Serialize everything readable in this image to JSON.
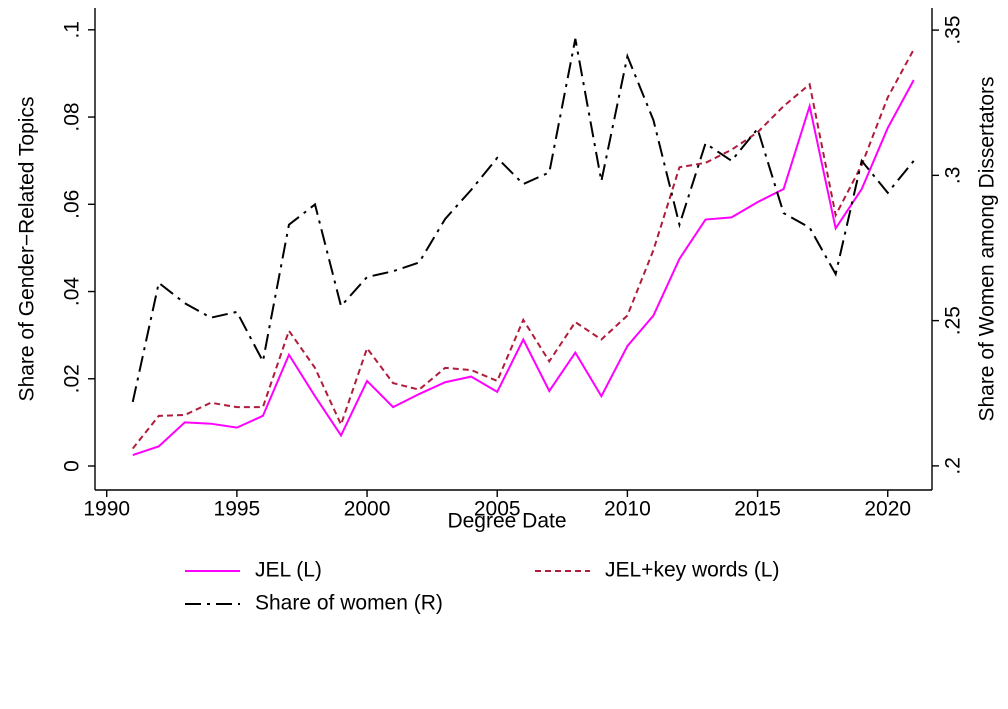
{
  "chart_data": {
    "type": "line",
    "x_label": "Degree Date",
    "y_label": "Share of Gender−Related Topics",
    "y2_label": "Share of Women among Dissertators",
    "x": [
      1991,
      1992,
      1993,
      1994,
      1995,
      1996,
      1997,
      1998,
      1999,
      2000,
      2001,
      2002,
      2003,
      2004,
      2005,
      2006,
      2007,
      2008,
      2009,
      2010,
      2011,
      2012,
      2013,
      2014,
      2015,
      2016,
      2017,
      2018,
      2019,
      2020,
      2021
    ],
    "series": [
      {
        "name": "JEL (L)",
        "color": "#ff00ff",
        "dash": "solid",
        "values": [
          0.0025,
          0.0045,
          0.01,
          0.0097,
          0.0088,
          0.0115,
          0.0255,
          0.016,
          0.007,
          0.0195,
          0.0135,
          0.0165,
          0.0192,
          0.0205,
          0.017,
          0.029,
          0.0172,
          0.026,
          0.016,
          0.0275,
          0.0345,
          0.0475,
          0.0565,
          0.057,
          0.0605,
          0.0635,
          0.0825,
          0.0545,
          0.0635,
          0.0775,
          0.0885
        ]
      },
      {
        "name": "JEL+key words (L)",
        "color": "#b01c3c",
        "dash": "dashed",
        "values": [
          0.004,
          0.0115,
          0.0117,
          0.0145,
          0.0135,
          0.0135,
          0.031,
          0.0225,
          0.0095,
          0.027,
          0.019,
          0.0175,
          0.0225,
          0.022,
          0.0195,
          0.0335,
          0.024,
          0.033,
          0.029,
          0.0345,
          0.0495,
          0.0685,
          0.0695,
          0.0725,
          0.0765,
          0.0825,
          0.0875,
          0.0575,
          0.069,
          0.0845,
          0.0955
        ]
      },
      {
        "name": "Share of women (R)",
        "color": "#000000",
        "dash": "dashdot",
        "axis": "y2",
        "values": [
          0.222,
          0.263,
          0.256,
          0.251,
          0.253,
          0.236,
          0.283,
          0.29,
          0.255,
          0.265,
          0.267,
          0.27,
          0.285,
          0.295,
          0.306,
          0.297,
          0.301,
          0.347,
          0.298,
          0.341,
          0.319,
          0.283,
          0.311,
          0.305,
          0.316,
          0.287,
          0.282,
          0.266,
          0.305,
          0.294,
          0.305
        ]
      }
    ],
    "xlim": [
      1989.55,
      2021.7
    ],
    "xticks": [
      1990,
      1995,
      2000,
      2005,
      2010,
      2015,
      2020
    ],
    "ylim": [
      -0.0055,
      0.105
    ],
    "yticks": [
      0,
      {
        "value": 0.02,
        "label": ".02"
      },
      {
        "value": 0.04,
        "label": ".04"
      },
      {
        "value": 0.06,
        "label": ".06"
      },
      {
        "value": 0.08,
        "label": ".08"
      },
      {
        "value": 0.1,
        "label": ".1"
      }
    ],
    "y2lim": [
      0.1917,
      0.3576
    ],
    "y2ticks": [
      {
        "value": 0.2,
        "label": ".2"
      },
      {
        "value": 0.25,
        "label": ".25"
      },
      {
        "value": 0.3,
        "label": ".3"
      },
      {
        "value": 0.35,
        "label": ".35"
      }
    ],
    "grid": false,
    "legend": "bottom"
  }
}
